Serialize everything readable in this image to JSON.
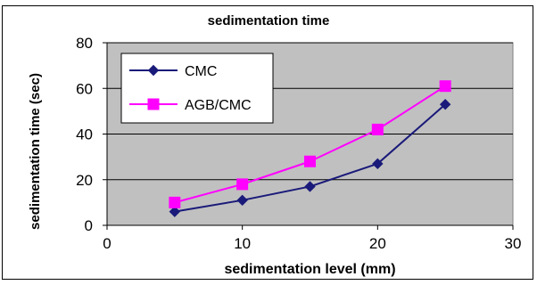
{
  "chart_data": {
    "type": "line",
    "title": "sedimentation time",
    "xlabel": "sedimentation level (mm)",
    "ylabel": "sedimentation time (sec)",
    "xlim": [
      0,
      30
    ],
    "ylim": [
      0,
      80
    ],
    "x_ticks": [
      "0",
      "10",
      "20",
      "30"
    ],
    "y_ticks": [
      "0",
      "20",
      "40",
      "60",
      "80"
    ],
    "grid": true,
    "legend_position": "top-left",
    "series": [
      {
        "name": "CMC",
        "color": "#1a1a7a",
        "marker": "diamond",
        "x": [
          5,
          10,
          15,
          20,
          25
        ],
        "y": [
          6,
          11,
          17,
          27,
          53
        ]
      },
      {
        "name": "AGB/CMC",
        "color": "#ff00ff",
        "marker": "square",
        "x": [
          5,
          10,
          15,
          20,
          25
        ],
        "y": [
          10,
          18,
          28,
          42,
          61
        ]
      }
    ]
  }
}
